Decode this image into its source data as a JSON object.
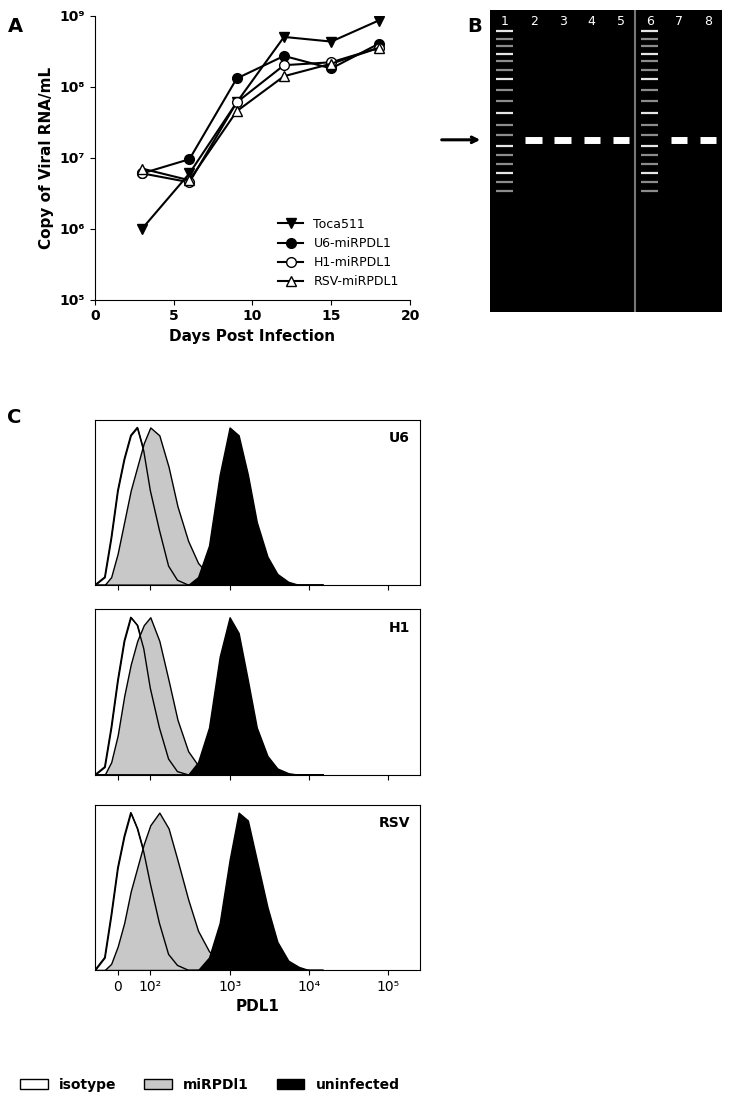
{
  "chart_data": [
    {
      "type": "line",
      "panel": "A",
      "x_label": "Days Post Infection",
      "y_label": "Copy of Viral RNA/mL",
      "x": [
        3,
        6,
        9,
        12,
        15,
        18
      ],
      "series": [
        {
          "name": "Toca511",
          "color": "#000000",
          "marker": "triangle_down",
          "values": [
            1000000,
            6000000,
            60000000,
            500000000,
            430000000,
            850000000
          ]
        },
        {
          "name": "U6-miRPDL1",
          "color": "#000000",
          "marker": "circle",
          "values": [
            6000000,
            9500000,
            130000000,
            270000000,
            180000000,
            400000000
          ]
        },
        {
          "name": "H1-miRPDL1",
          "color": "#ffffff",
          "marker": "circle",
          "values": [
            6000000,
            4500000,
            60000000,
            200000000,
            220000000,
            350000000
          ]
        },
        {
          "name": "RSV-miRPDL1",
          "color": "#ffffff",
          "marker": "triangle_up",
          "values": [
            7000000,
            4800000,
            45000000,
            140000000,
            210000000,
            350000000
          ]
        }
      ],
      "log": "y",
      "xlim": [
        0,
        20
      ],
      "xticks": [
        0,
        5,
        10,
        15,
        20
      ],
      "ylim": [
        100000,
        1000000000
      ],
      "yticks": [
        {
          "value": 100000,
          "label": "10⁵"
        },
        {
          "value": 1000000,
          "label": "10⁶"
        },
        {
          "value": 10000000,
          "label": "10⁷"
        },
        {
          "value": 100000000,
          "label": "10⁸"
        },
        {
          "value": 1000000000,
          "label": "10⁹"
        }
      ],
      "legend": "lower right"
    },
    {
      "type": "gel",
      "panel": "B",
      "lanes": [
        "1",
        "2",
        "3",
        "4",
        "5",
        "6",
        "7",
        "8"
      ],
      "ladder_lanes": [
        "1",
        "6"
      ],
      "band_lanes": [
        "2",
        "3",
        "4",
        "5",
        "7",
        "8"
      ]
    },
    {
      "type": "area",
      "panel": "C",
      "title": "U6",
      "x": [
        -70,
        -40,
        -20,
        0,
        20,
        40,
        60,
        80,
        100,
        130,
        170,
        220,
        300,
        400,
        550,
        750,
        1000,
        1300,
        1700,
        2200,
        3000,
        4000,
        5500,
        7500,
        10000,
        15000
      ],
      "series": [
        {
          "name": "isotype",
          "color": "#ffffff",
          "values": [
            0,
            5,
            30,
            60,
            80,
            95,
            100,
            85,
            60,
            35,
            12,
            3,
            0,
            0,
            0,
            0,
            0,
            0,
            0,
            0,
            0,
            0,
            0,
            0,
            0,
            0
          ]
        },
        {
          "name": "miRPDl1",
          "color": "#c8c8c8",
          "values": [
            0,
            0,
            5,
            20,
            40,
            60,
            75,
            90,
            100,
            95,
            75,
            50,
            28,
            14,
            6,
            2,
            0,
            0,
            0,
            0,
            0,
            0,
            0,
            0,
            0,
            0
          ]
        },
        {
          "name": "uninfected",
          "color": "#000000",
          "values": [
            0,
            0,
            0,
            0,
            0,
            0,
            0,
            0,
            0,
            0,
            0,
            0,
            0,
            5,
            25,
            70,
            100,
            95,
            70,
            40,
            18,
            7,
            2,
            0,
            0,
            0
          ]
        }
      ],
      "log": "x",
      "xlim": [
        -70,
        250000
      ],
      "xticks": [
        0,
        {
          "value": 100,
          "label": "10²"
        },
        {
          "value": 1000,
          "label": "10³"
        },
        {
          "value": 10000,
          "label": "10⁴"
        },
        {
          "value": 100000,
          "label": "10⁵"
        }
      ],
      "ylim": [
        0,
        105
      ],
      "tick_labels": false
    },
    {
      "type": "area",
      "title": "H1",
      "x": [
        -70,
        -40,
        -20,
        0,
        20,
        40,
        60,
        80,
        100,
        130,
        170,
        220,
        300,
        400,
        550,
        750,
        1000,
        1300,
        1700,
        2200,
        3000,
        4000,
        5500,
        7500,
        10000,
        15000
      ],
      "series": [
        {
          "name": "isotype",
          "color": "#ffffff",
          "values": [
            0,
            5,
            30,
            60,
            85,
            100,
            95,
            80,
            55,
            30,
            10,
            2,
            0,
            0,
            0,
            0,
            0,
            0,
            0,
            0,
            0,
            0,
            0,
            0,
            0,
            0
          ]
        },
        {
          "name": "miRPDl1",
          "color": "#c8c8c8",
          "values": [
            0,
            0,
            8,
            25,
            50,
            70,
            85,
            95,
            100,
            85,
            60,
            35,
            15,
            6,
            2,
            0,
            0,
            0,
            0,
            0,
            0,
            0,
            0,
            0,
            0,
            0
          ]
        },
        {
          "name": "uninfected",
          "color": "#000000",
          "values": [
            0,
            0,
            0,
            0,
            0,
            0,
            0,
            0,
            0,
            0,
            0,
            0,
            0,
            8,
            30,
            75,
            100,
            90,
            60,
            30,
            12,
            4,
            1,
            0,
            0,
            0
          ]
        }
      ],
      "log": "x",
      "xlim": [
        -70,
        250000
      ],
      "xticks": [
        0,
        {
          "value": 100,
          "label": "10²"
        },
        {
          "value": 1000,
          "label": "10³"
        },
        {
          "value": 10000,
          "label": "10⁴"
        },
        {
          "value": 100000,
          "label": "10⁵"
        }
      ],
      "ylim": [
        0,
        105
      ],
      "tick_labels": false
    },
    {
      "type": "area",
      "title": "RSV",
      "x_label": "PDL1",
      "x": [
        -70,
        -40,
        -20,
        0,
        20,
        40,
        60,
        80,
        100,
        130,
        170,
        220,
        300,
        400,
        550,
        750,
        1000,
        1300,
        1700,
        2200,
        3000,
        4000,
        5500,
        7500,
        10000,
        15000
      ],
      "series": [
        {
          "name": "isotype",
          "color": "#ffffff",
          "values": [
            0,
            8,
            35,
            65,
            85,
            100,
            90,
            75,
            55,
            30,
            10,
            3,
            0,
            0,
            0,
            0,
            0,
            0,
            0,
            0,
            0,
            0,
            0,
            0,
            0,
            0
          ]
        },
        {
          "name": "miRPDl1",
          "color": "#c8c8c8",
          "values": [
            0,
            0,
            4,
            15,
            30,
            50,
            65,
            80,
            92,
            100,
            90,
            70,
            45,
            25,
            12,
            5,
            1,
            0,
            0,
            0,
            0,
            0,
            0,
            0,
            0,
            0
          ]
        },
        {
          "name": "uninfected",
          "color": "#000000",
          "values": [
            0,
            0,
            0,
            0,
            0,
            0,
            0,
            0,
            0,
            0,
            0,
            0,
            0,
            0,
            8,
            30,
            70,
            100,
            95,
            70,
            40,
            18,
            6,
            2,
            0,
            0
          ]
        }
      ],
      "log": "x",
      "xlim": [
        -70,
        250000
      ],
      "xticks": [
        0,
        {
          "value": 100,
          "label": "10²"
        },
        {
          "value": 1000,
          "label": "10³"
        },
        {
          "value": 10000,
          "label": "10⁴"
        },
        {
          "value": 100000,
          "label": "10⁵"
        }
      ],
      "ylim": [
        0,
        105
      ],
      "tick_labels": "x",
      "legend": "lower left"
    }
  ]
}
